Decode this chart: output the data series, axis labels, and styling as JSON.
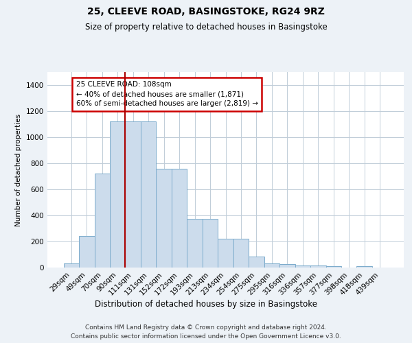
{
  "title1": "25, CLEEVE ROAD, BASINGSTOKE, RG24 9RZ",
  "title2": "Size of property relative to detached houses in Basingstoke",
  "xlabel": "Distribution of detached houses by size in Basingstoke",
  "ylabel": "Number of detached properties",
  "categories": [
    "29sqm",
    "49sqm",
    "70sqm",
    "90sqm",
    "111sqm",
    "131sqm",
    "152sqm",
    "172sqm",
    "193sqm",
    "213sqm",
    "234sqm",
    "254sqm",
    "275sqm",
    "295sqm",
    "316sqm",
    "336sqm",
    "357sqm",
    "377sqm",
    "398sqm",
    "418sqm",
    "439sqm"
  ],
  "values": [
    30,
    240,
    720,
    1120,
    1120,
    1120,
    760,
    760,
    375,
    375,
    220,
    220,
    85,
    30,
    25,
    15,
    15,
    12,
    0,
    12,
    0
  ],
  "bar_color": "#ccdcec",
  "bar_edge_color": "#7aaacb",
  "vline_x": 3.5,
  "vline_color": "#aa0000",
  "annotation_text": "25 CLEEVE ROAD: 108sqm\n← 40% of detached houses are smaller (1,871)\n60% of semi-detached houses are larger (2,819) →",
  "annotation_box_facecolor": "#ffffff",
  "annotation_box_edgecolor": "#cc0000",
  "ylim": [
    0,
    1500
  ],
  "yticks": [
    0,
    200,
    400,
    600,
    800,
    1000,
    1200,
    1400
  ],
  "bg_color": "#edf2f7",
  "plot_bg_color": "#ffffff",
  "grid_color": "#c0cdd8",
  "footer_line1": "Contains HM Land Registry data © Crown copyright and database right 2024.",
  "footer_line2": "Contains public sector information licensed under the Open Government Licence v3.0."
}
